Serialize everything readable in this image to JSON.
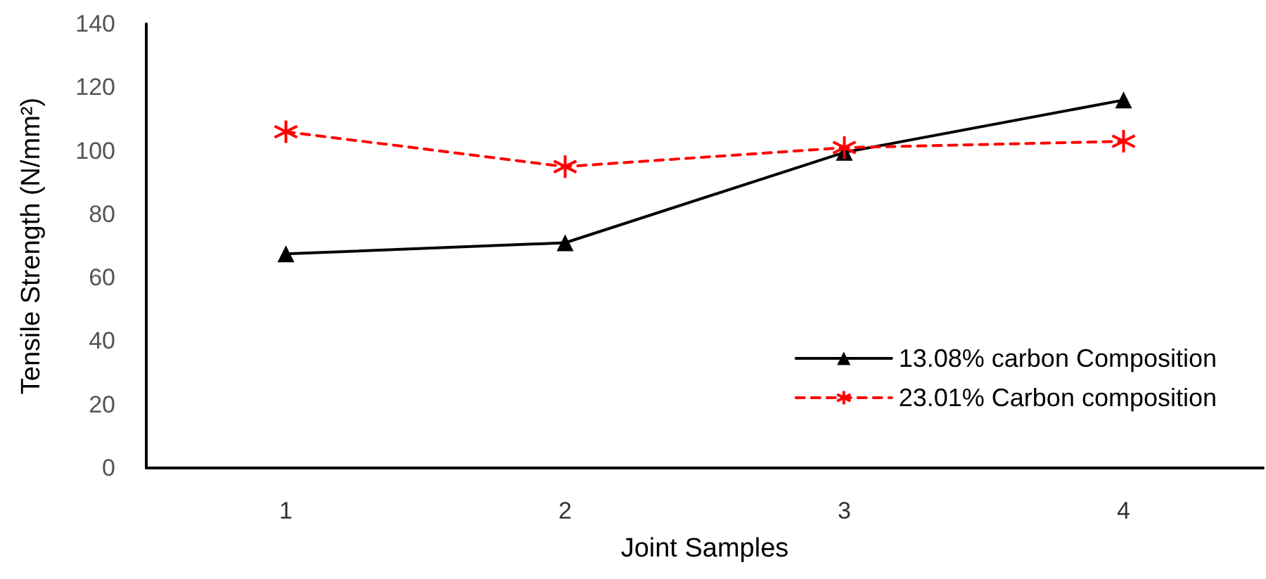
{
  "chart_data": {
    "type": "line",
    "xlabel": "Joint Samples",
    "ylabel": "Tensile Strength (N/mm²)",
    "categories": [
      "1",
      "2",
      "3",
      "4"
    ],
    "series": [
      {
        "name": "13.08% carbon Composition",
        "color": "#000000",
        "values": [
          67.5,
          71,
          99.5,
          116
        ],
        "marker": "triangle",
        "line_style": "solid"
      },
      {
        "name": "23.01% Carbon composition",
        "color": "#ff0000",
        "values": [
          106,
          95,
          101,
          103
        ],
        "marker": "cross",
        "line_style": "dashed"
      }
    ],
    "ylim": [
      0,
      140
    ],
    "yticks": [
      0,
      20,
      40,
      60,
      80,
      100,
      120,
      140
    ],
    "grid": false,
    "legend": "bottom right"
  }
}
